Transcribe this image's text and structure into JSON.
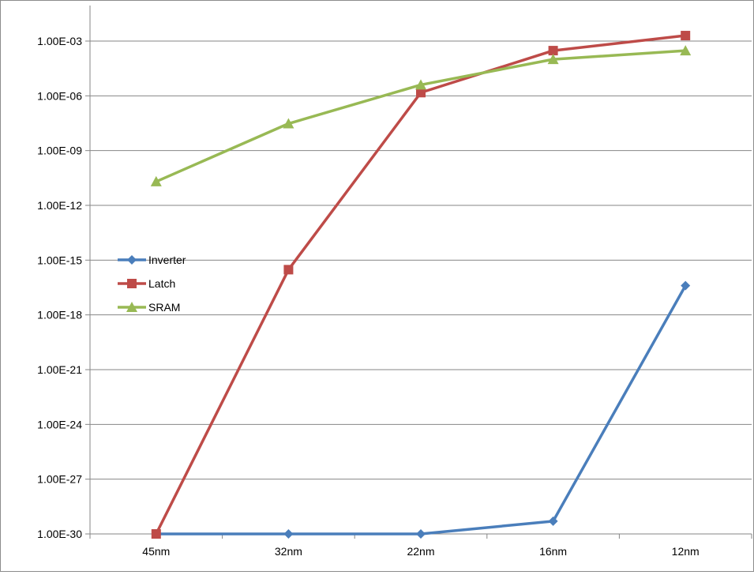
{
  "chart_data": {
    "type": "line",
    "title": "",
    "xlabel": "",
    "ylabel": "",
    "y_scale": "log",
    "ylim": [
      1e-30,
      0.001
    ],
    "y_ticks": [
      "1.00E-30",
      "1.00E-27",
      "1.00E-24",
      "1.00E-21",
      "1.00E-18",
      "1.00E-15",
      "1.00E-12",
      "1.00E-09",
      "1.00E-06",
      "1.00E-03"
    ],
    "y_tick_values": [
      1e-30,
      1e-27,
      1e-24,
      1e-21,
      1e-18,
      1e-15,
      1e-12,
      1e-09,
      1e-06,
      0.001
    ],
    "categories": [
      "45nm",
      "32nm",
      "22nm",
      "16nm",
      "12nm"
    ],
    "grid": "horizontal",
    "legend_position": "left",
    "series": [
      {
        "name": "Inverter",
        "color": "#4a7ebb",
        "marker": "diamond",
        "values": [
          1e-30,
          1e-30,
          1e-30,
          5e-30,
          4e-17
        ]
      },
      {
        "name": "Latch",
        "color": "#be4b48",
        "marker": "square",
        "values": [
          1e-30,
          3e-16,
          1.5e-06,
          0.0003,
          0.002
        ]
      },
      {
        "name": "SRAM",
        "color": "#98b954",
        "marker": "triangle",
        "values": [
          2e-11,
          3e-08,
          4e-06,
          0.0001,
          0.0003
        ]
      }
    ]
  }
}
